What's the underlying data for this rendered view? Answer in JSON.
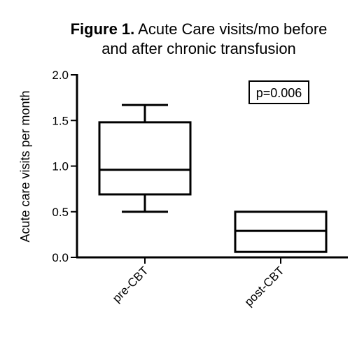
{
  "chart_data": {
    "type": "box",
    "title_bold": "Figure 1.",
    "title_line1_rest": " Acute Care visits/mo before",
    "title_line2": "and after chronic transfusion",
    "ylabel": "Acute care visits per month",
    "xlabel": "",
    "ylim": [
      0,
      2.0
    ],
    "yticks": [
      "0.0",
      "0.5",
      "1.0",
      "1.5",
      "2.0"
    ],
    "ytick_values": [
      0,
      0.5,
      1.0,
      1.5,
      2.0
    ],
    "categories": [
      "pre-CBT",
      "post-CBT"
    ],
    "boxes": [
      {
        "category": "pre-CBT",
        "whisker_low": 0.5,
        "q1": 0.69,
        "median": 0.96,
        "q3": 1.48,
        "whisker_high": 1.67
      },
      {
        "category": "post-CBT",
        "whisker_low": 0.06,
        "q1": 0.06,
        "median": 0.29,
        "q3": 0.5,
        "whisker_high": 0.5
      }
    ],
    "annotation": "p=0.006",
    "grid": false
  }
}
